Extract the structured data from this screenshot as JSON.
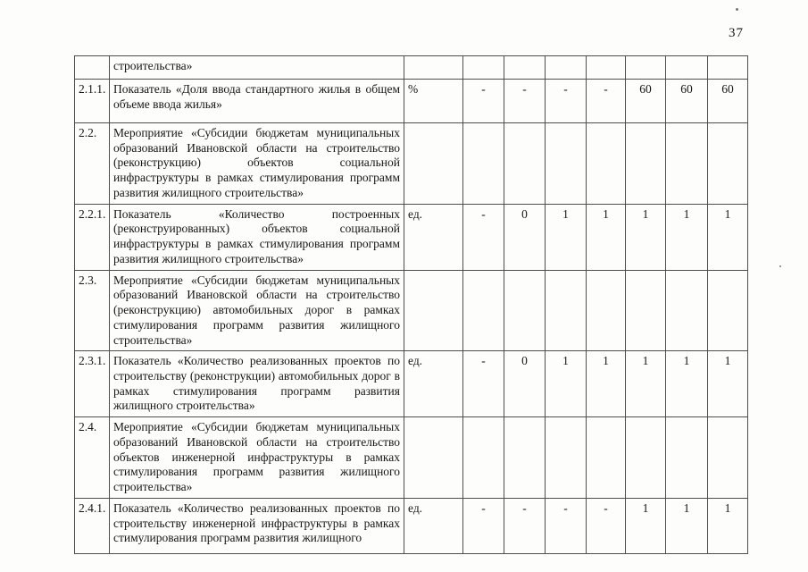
{
  "page": {
    "number": "37"
  },
  "table": {
    "rows": [
      {
        "num": "",
        "text": "строительства»",
        "unit": "",
        "values": [
          "",
          "",
          "",
          "",
          "",
          "",
          ""
        ]
      },
      {
        "num": "2.1.1.",
        "text": "Показатель «Доля ввода стандартного жилья в общем объеме ввода жилья»",
        "unit": "%",
        "values": [
          "-",
          "-",
          "-",
          "-",
          "60",
          "60",
          "60"
        ]
      },
      {
        "num": "2.2.",
        "text": "Мероприятие «Субсидии бюджетам муниципальных образований Ивановской области на строительство (реконструкцию) объектов социальной инфраструктуры в рамках стимулирования программ развития жилищного строительства»",
        "unit": "",
        "values": [
          "",
          "",
          "",
          "",
          "",
          "",
          ""
        ]
      },
      {
        "num": "2.2.1.",
        "text": "Показатель «Количество построенных (реконструированных) объектов социальной инфраструктуры в рамках стимулирования программ развития жилищного строительства»",
        "unit": "ед.",
        "values": [
          "-",
          "0",
          "1",
          "1",
          "1",
          "1",
          "1"
        ]
      },
      {
        "num": "2.3.",
        "text": "Мероприятие «Субсидии бюджетам муниципальных образований Ивановской области на строительство (реконструкцию) автомобильных дорог в рамках стимулирования программ развития жилищного строительства»",
        "unit": "",
        "values": [
          "",
          "",
          "",
          "",
          "",
          "",
          ""
        ]
      },
      {
        "num": "2.3.1.",
        "text": "Показатель «Количество реализованных проектов по строительству (реконструкции) автомобильных дорог в рамках стимулирования программ развития жилищного строительства»",
        "unit": "ед.",
        "values": [
          "-",
          "0",
          "1",
          "1",
          "1",
          "1",
          "1"
        ]
      },
      {
        "num": "2.4.",
        "text": "Мероприятие «Субсидии бюджетам муниципальных образований Ивановской области на строительство объектов инженерной инфраструктуры в рамках стимулирования программ развития жилищного строительства»",
        "unit": "",
        "values": [
          "",
          "",
          "",
          "",
          "",
          "",
          ""
        ]
      },
      {
        "num": "2.4.1.",
        "text": "Показатель «Количество реализованных проектов по строительству инженерной инфраструктуры в рамках стимулирования программ развития жилищного",
        "unit": "ед.",
        "values": [
          "-",
          "-",
          "-",
          "-",
          "1",
          "1",
          "1"
        ]
      }
    ]
  }
}
